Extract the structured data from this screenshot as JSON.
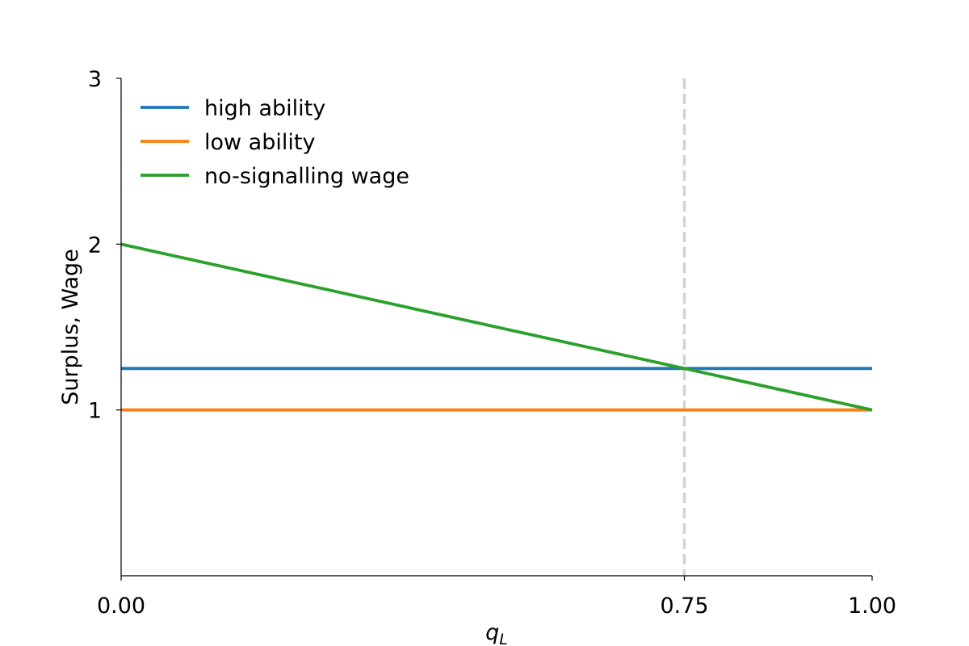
{
  "chart_data": {
    "type": "line",
    "xlabel": "q",
    "xlabel_subscript": "L",
    "ylabel": "Surplus, Wage",
    "xlim": [
      0,
      1
    ],
    "ylim": [
      0,
      3
    ],
    "x_ticks": [
      {
        "value": 0,
        "label": "0.00"
      },
      {
        "value": 0.75,
        "label": "0.75"
      },
      {
        "value": 1,
        "label": "1.00"
      }
    ],
    "y_ticks": [
      {
        "value": 1,
        "label": "1"
      },
      {
        "value": 2,
        "label": "2"
      },
      {
        "value": 3,
        "label": "3"
      }
    ],
    "grid": false,
    "legend_position": "top-left",
    "series": [
      {
        "name": "high ability",
        "color": "#1f77b4",
        "points": [
          [
            0,
            1.25
          ],
          [
            1,
            1.25
          ]
        ]
      },
      {
        "name": "low ability",
        "color": "#ff7f0e",
        "points": [
          [
            0,
            1
          ],
          [
            1,
            1
          ]
        ]
      },
      {
        "name": "no-signalling wage",
        "color": "#2ca02c",
        "points": [
          [
            0,
            2
          ],
          [
            1,
            1
          ]
        ]
      }
    ],
    "reference_lines": [
      {
        "orientation": "vertical",
        "x": 0.75,
        "style": "dashed",
        "color": "#d3d3d3"
      }
    ]
  }
}
